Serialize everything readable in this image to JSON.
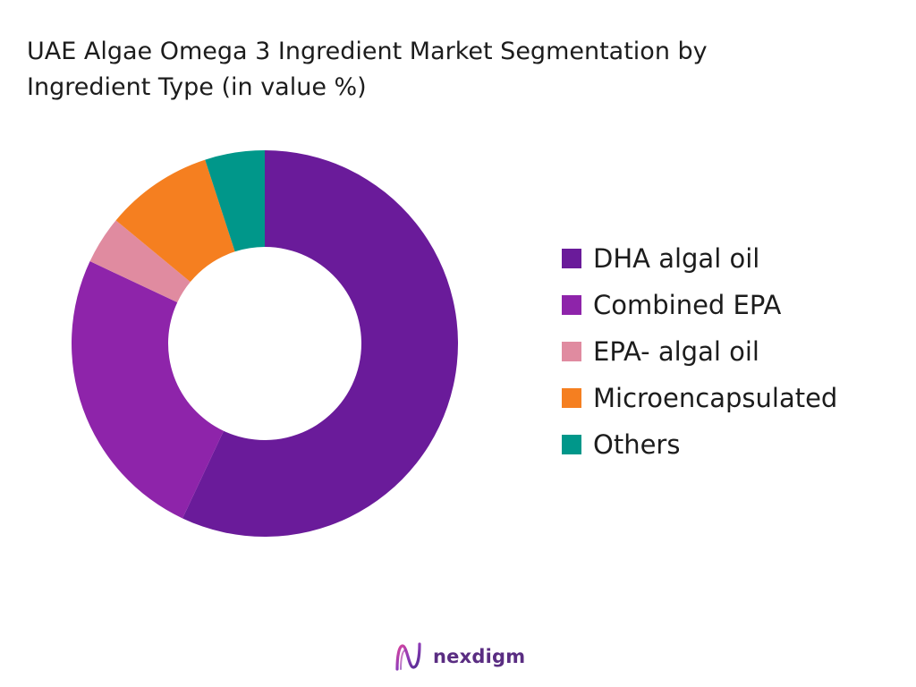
{
  "title_line1": "UAE Algae Omega 3 Ingredient Market Segmentation by",
  "title_line2": "Ingredient Type (in value %)",
  "chart_data": {
    "type": "pie",
    "title": "UAE Algae Omega 3 Ingredient Market Segmentation by Ingredient Type (in value %)",
    "donut": true,
    "legend_position": "right",
    "labels": [
      "DHA algal oil",
      "Combined EPA",
      "EPA- algal oil",
      "Microencapsulated",
      "Others"
    ],
    "values": [
      57,
      25,
      4,
      9,
      5
    ],
    "colors": [
      "#6a1b9a",
      "#8e24aa",
      "#e08ba0",
      "#f57f20",
      "#00978a"
    ]
  },
  "brand": {
    "name": "nexdigm",
    "icon": "nexdigm-logo-icon"
  }
}
